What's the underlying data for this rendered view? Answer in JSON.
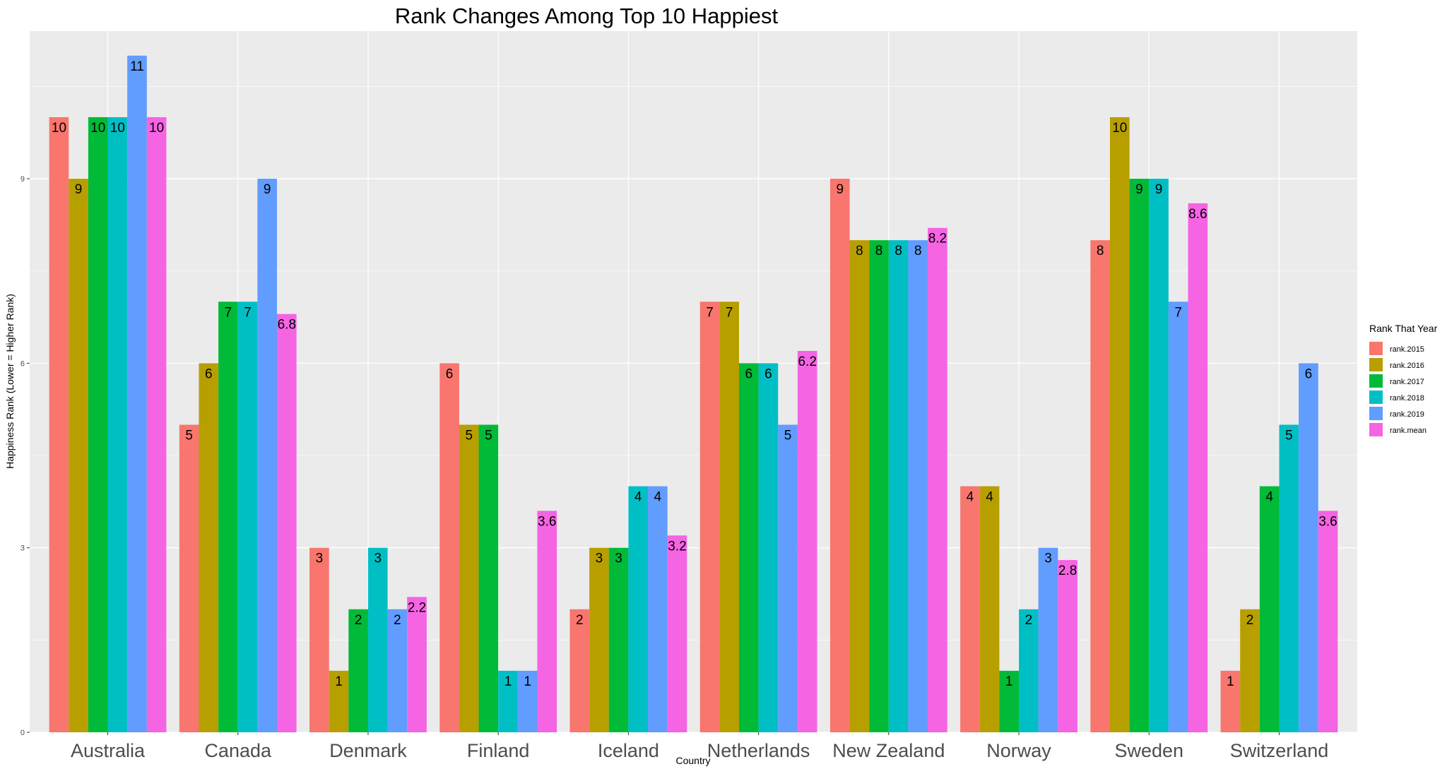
{
  "chart_data": {
    "type": "bar",
    "title": "Rank Changes Among Top 10 Happiest",
    "xlabel": "Country",
    "ylabel": "Happiness Rank (Lower = Higher Rank)",
    "ylim": [
      0,
      11.4
    ],
    "yticks": [
      0,
      3,
      6,
      9
    ],
    "grid": true,
    "legend_title": "Rank That Year",
    "legend_position": "right",
    "categories": [
      "Australia",
      "Canada",
      "Denmark",
      "Finland",
      "Iceland",
      "Netherlands",
      "New Zealand",
      "Norway",
      "Sweden",
      "Switzerland"
    ],
    "series": [
      {
        "name": "rank.2015",
        "color": "#F8766D",
        "values": [
          10,
          5,
          3,
          6,
          2,
          7,
          9,
          4,
          8,
          1
        ]
      },
      {
        "name": "rank.2016",
        "color": "#B79F00",
        "values": [
          9,
          6,
          1,
          5,
          3,
          7,
          8,
          4,
          10,
          2
        ]
      },
      {
        "name": "rank.2017",
        "color": "#00BA38",
        "values": [
          10,
          7,
          2,
          5,
          3,
          6,
          8,
          1,
          9,
          4
        ]
      },
      {
        "name": "rank.2018",
        "color": "#00BFC4",
        "values": [
          10,
          7,
          3,
          1,
          4,
          6,
          8,
          2,
          9,
          5
        ]
      },
      {
        "name": "rank.2019",
        "color": "#619CFF",
        "values": [
          11,
          9,
          2,
          1,
          4,
          5,
          8,
          3,
          7,
          6
        ]
      },
      {
        "name": "rank.mean",
        "color": "#F564E3",
        "values": [
          10,
          6.8,
          2.2,
          3.6,
          3.2,
          6.2,
          8.2,
          2.8,
          8.6,
          3.6
        ]
      }
    ]
  }
}
